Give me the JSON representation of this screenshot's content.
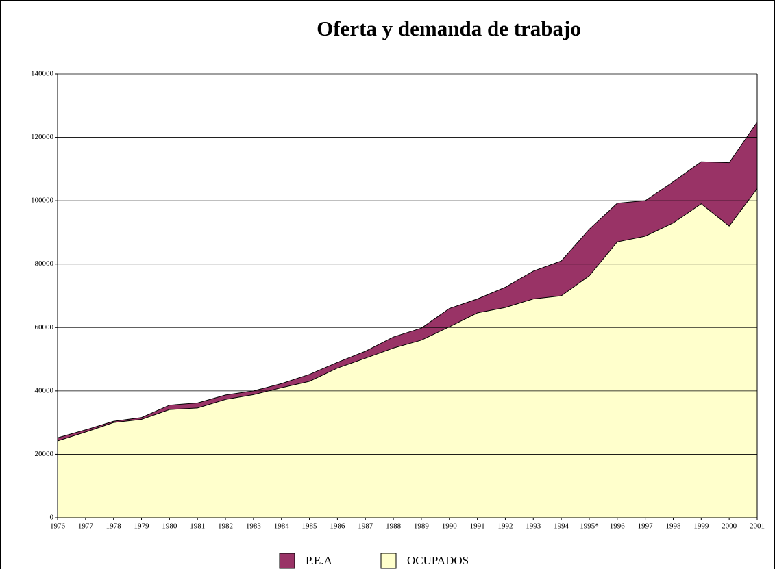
{
  "chart_data": {
    "type": "area",
    "title": "Oferta y demanda de trabajo",
    "categories": [
      "1976",
      "1977",
      "1978",
      "1979",
      "1980",
      "1981",
      "1982",
      "1983",
      "1984",
      "1985",
      "1986",
      "1987",
      "1988",
      "1989",
      "1990",
      "1991",
      "1992",
      "1993",
      "1994",
      "1995*",
      "1996",
      "1997",
      "1998",
      "1999",
      "2000",
      "2001"
    ],
    "series": [
      {
        "name": "P.E.A",
        "color": "#993366",
        "values": [
          25200,
          27700,
          30400,
          31600,
          35500,
          36200,
          38700,
          40000,
          42300,
          45200,
          49000,
          52500,
          57000,
          59800,
          66000,
          69000,
          72700,
          77800,
          81000,
          91000,
          99200,
          100000,
          106000,
          112300,
          112000,
          124800
        ]
      },
      {
        "name": "OCUPADOS",
        "color": "#ffffcc",
        "values": [
          24200,
          27000,
          30000,
          31000,
          34100,
          34600,
          37300,
          38800,
          41000,
          43000,
          47200,
          50300,
          53500,
          56000,
          60200,
          64600,
          66300,
          69000,
          70000,
          76300,
          87000,
          88800,
          93000,
          99000,
          92000,
          103800
        ]
      }
    ],
    "ylim": [
      0,
      140000
    ],
    "yticks": [
      0,
      20000,
      40000,
      60000,
      80000,
      100000,
      120000,
      140000
    ],
    "grid": true
  }
}
